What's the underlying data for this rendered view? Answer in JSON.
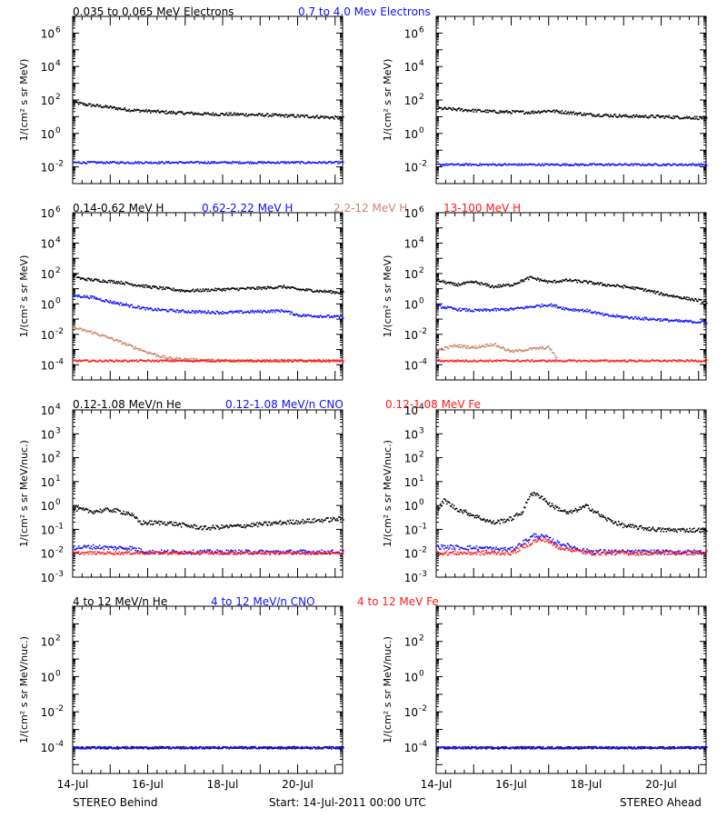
{
  "colors": {
    "black": "#000000",
    "blue": "#1010ff",
    "tan": "#c8866a",
    "red": "#ff1a1a"
  },
  "x_axis": {
    "tick_labels": [
      "14-Jul",
      "16-Jul",
      "18-Jul",
      "20-Jul"
    ],
    "day_positions": [
      0,
      2,
      4,
      6
    ],
    "range_days": [
      0,
      7.2
    ],
    "minor_ticks_per_day": 4
  },
  "footer": {
    "left": "STEREO Behind",
    "center": "Start: 14-Jul-2011 00:00 UTC",
    "right": "STEREO Ahead"
  },
  "chart_data": [
    {
      "type": "scatter",
      "row": "electrons",
      "legend": [
        {
          "text": "0.035 to 0.065 MeV Electrons",
          "color": "#000000"
        },
        {
          "text": "0.7 to 4.0 Mev Electrons",
          "color": "#1010ff"
        }
      ],
      "ylabel": "1/(cm² s sr MeV)",
      "yscale": "log",
      "ylim_exp": [
        -3,
        7
      ],
      "ytick_exponents": [
        -2,
        0,
        2,
        4,
        6
      ],
      "panels": [
        {
          "spacecraft": "STEREO Behind",
          "series": [
            {
              "color": "#000000",
              "x": [
                0,
                0.3,
                0.8,
                1.5,
                2.5,
                3.5,
                4.5,
                5.5,
                6.5,
                7.2
              ],
              "y": [
                80,
                60,
                45,
                28,
                20,
                16,
                15,
                13,
                11,
                9
              ]
            },
            {
              "color": "#1010ff",
              "x": [
                0,
                1,
                2,
                3,
                4,
                5,
                6,
                7.2
              ],
              "y": [
                0.02,
                0.02,
                0.02,
                0.02,
                0.02,
                0.02,
                0.02,
                0.02
              ]
            }
          ]
        },
        {
          "spacecraft": "STEREO Ahead",
          "series": [
            {
              "color": "#000000",
              "x": [
                0,
                0.5,
                1.5,
                2.5,
                3.0,
                4.0,
                5.0,
                6.0,
                7.2
              ],
              "y": [
                35,
                30,
                22,
                20,
                25,
                15,
                12,
                11,
                9
              ]
            },
            {
              "color": "#1010ff",
              "x": [
                0,
                1,
                2,
                3,
                4,
                5,
                6,
                7.2
              ],
              "y": [
                0.015,
                0.015,
                0.015,
                0.015,
                0.015,
                0.015,
                0.015,
                0.015
              ]
            }
          ]
        }
      ]
    },
    {
      "type": "scatter",
      "row": "protons",
      "legend": [
        {
          "text": "0.14-0.62 MeV H",
          "color": "#000000"
        },
        {
          "text": "0.62-2.22 MeV H",
          "color": "#1010ff"
        },
        {
          "text": "2.2-12 MeV H",
          "color": "#c8866a"
        },
        {
          "text": "13-100 MeV H",
          "color": "#ff1a1a"
        }
      ],
      "ylabel": "1/(cm² s sr MeV)",
      "yscale": "log",
      "ylim_exp": [
        -5,
        6
      ],
      "ytick_exponents": [
        -4,
        -2,
        0,
        2,
        4,
        6
      ],
      "panels": [
        {
          "spacecraft": "STEREO Behind",
          "series": [
            {
              "color": "#000000",
              "x": [
                0,
                0.2,
                0.6,
                1.2,
                2,
                3,
                4,
                5,
                5.6,
                6,
                6.5,
                7.2
              ],
              "y": [
                100,
                50,
                40,
                30,
                15,
                8,
                10,
                12,
                15,
                10,
                8,
                6
              ]
            },
            {
              "color": "#1010ff",
              "x": [
                0,
                0.5,
                1,
                2,
                3,
                4,
                5,
                5.6,
                6,
                6.5,
                7.2
              ],
              "y": [
                4,
                3,
                1.5,
                0.5,
                0.35,
                0.3,
                0.35,
                0.4,
                0.2,
                0.18,
                0.15
              ]
            },
            {
              "color": "#c8866a",
              "x": [
                0,
                0.5,
                1,
                1.5,
                2,
                2.5,
                3,
                4,
                5,
                6,
                7.2
              ],
              "y": [
                0.03,
                0.015,
                0.006,
                0.002,
                0.0007,
                0.0003,
                0.00025,
                0.0002,
                0.0002,
                0.0002,
                0.0002
              ]
            },
            {
              "color": "#ff1a1a",
              "x": [
                0,
                1,
                2,
                3,
                4,
                5,
                6,
                7.2
              ],
              "y": [
                0.0002,
                0.0002,
                0.0002,
                0.0002,
                0.0002,
                0.0002,
                0.0002,
                0.0002
              ]
            }
          ]
        },
        {
          "spacecraft": "STEREO Ahead",
          "series": [
            {
              "color": "#000000",
              "x": [
                0,
                0.5,
                1,
                1.5,
                2,
                2.5,
                3,
                3.5,
                4,
                4.5,
                5,
                5.5,
                6,
                6.5,
                7.2
              ],
              "y": [
                40,
                20,
                30,
                15,
                20,
                60,
                30,
                40,
                30,
                20,
                15,
                10,
                5,
                3,
                1.5
              ]
            },
            {
              "color": "#1010ff",
              "x": [
                0,
                0.5,
                1,
                2,
                3,
                3.5,
                4,
                4.5,
                5,
                5.5,
                6,
                6.5,
                7.2
              ],
              "y": [
                0.8,
                0.5,
                0.4,
                0.5,
                1,
                0.5,
                0.4,
                0.2,
                0.15,
                0.12,
                0.1,
                0.08,
                0.07
              ]
            },
            {
              "color": "#c8866a",
              "x": [
                0,
                0.5,
                1,
                1.5,
                2,
                2.5,
                3,
                3.2
              ],
              "y": [
                0.001,
                0.002,
                0.0015,
                0.0025,
                0.0008,
                0.0012,
                0.0015,
                0.0003
              ]
            },
            {
              "color": "#ff1a1a",
              "x": [
                0,
                1,
                2,
                3,
                4,
                5,
                6,
                7.2
              ],
              "y": [
                0.0002,
                0.0002,
                0.0002,
                0.0002,
                0.0002,
                0.0002,
                0.0002,
                0.0002
              ]
            }
          ]
        }
      ]
    },
    {
      "type": "scatter",
      "row": "heavy-low",
      "legend": [
        {
          "text": "0.12-1.08 MeV/n He",
          "color": "#000000"
        },
        {
          "text": "0.12-1.08 MeV/n CNO",
          "color": "#1010ff"
        },
        {
          "text": "0.12-1.08 MeV Fe",
          "color": "#ff1a1a"
        }
      ],
      "ylabel": "1/(cm² s sr MeV/nuc.)",
      "yscale": "log",
      "ylim_exp": [
        -3,
        4
      ],
      "ytick_exponents": [
        -3,
        -2,
        -1,
        0,
        1,
        2,
        3,
        4
      ],
      "panels": [
        {
          "spacecraft": "STEREO Behind",
          "series": [
            {
              "color": "#000000",
              "x": [
                0,
                0.5,
                1,
                1.5,
                1.8,
                2.5,
                3.5,
                4.5,
                5.5,
                6.5,
                7.2
              ],
              "y": [
                0.8,
                0.6,
                0.7,
                0.5,
                0.2,
                0.2,
                0.12,
                0.15,
                0.2,
                0.25,
                0.3
              ]
            },
            {
              "color": "#1010ff",
              "x": [
                0,
                0.5,
                1,
                1.5,
                2,
                3,
                4,
                5,
                6,
                7.2
              ],
              "y": [
                0.018,
                0.02,
                0.018,
                0.018,
                0.012,
                0.012,
                0.012,
                0.012,
                0.012,
                0.012
              ]
            },
            {
              "color": "#ff1a1a",
              "x": [
                0,
                1,
                2,
                3,
                4,
                5,
                6,
                7.2
              ],
              "y": [
                0.011,
                0.011,
                0.011,
                0.011,
                0.011,
                0.011,
                0.011,
                0.011
              ]
            }
          ]
        },
        {
          "spacecraft": "STEREO Ahead",
          "series": [
            {
              "color": "#000000",
              "x": [
                0,
                0.2,
                0.5,
                1,
                1.5,
                2,
                2.3,
                2.5,
                2.8,
                3,
                3.5,
                4,
                4.5,
                5,
                6,
                7.2
              ],
              "y": [
                0.6,
                1.8,
                0.8,
                0.4,
                0.2,
                0.3,
                0.6,
                3.5,
                2.5,
                1.2,
                0.5,
                1.0,
                0.3,
                0.15,
                0.1,
                0.1
              ]
            },
            {
              "color": "#1010ff",
              "x": [
                0,
                1,
                2,
                2.6,
                2.9,
                3.2,
                4,
                5,
                6,
                7.2
              ],
              "y": [
                0.02,
                0.018,
                0.015,
                0.06,
                0.05,
                0.03,
                0.013,
                0.012,
                0.012,
                0.012
              ]
            },
            {
              "color": "#ff1a1a",
              "x": [
                0,
                1,
                2,
                2.6,
                2.9,
                3.2,
                4,
                5,
                6,
                7.2
              ],
              "y": [
                0.011,
                0.011,
                0.011,
                0.035,
                0.04,
                0.02,
                0.011,
                0.011,
                0.011,
                0.011
              ]
            }
          ]
        }
      ]
    },
    {
      "type": "scatter",
      "row": "heavy-high",
      "legend": [
        {
          "text": "4 to 12 MeV/n He",
          "color": "#000000"
        },
        {
          "text": "4 to 12 MeV/n CNO",
          "color": "#1010ff"
        },
        {
          "text": "4 to 12 MeV Fe",
          "color": "#ff1a1a"
        }
      ],
      "ylabel": "1/(cm² s sr MeV/nuc.)",
      "yscale": "log",
      "ylim_exp": [
        -5.5,
        4
      ],
      "ytick_exponents": [
        -4,
        -2,
        0,
        2
      ],
      "panels": [
        {
          "spacecraft": "STEREO Behind",
          "series": [
            {
              "color": "#000000",
              "x": [
                0,
                1,
                2,
                3,
                4,
                5,
                6,
                7.2
              ],
              "y": [
                0.0001,
                0.0001,
                0.0001,
                0.0001,
                0.0001,
                0.0001,
                0.0001,
                0.0001
              ]
            },
            {
              "color": "#1010ff",
              "x": [
                0,
                1.5,
                3,
                4.5,
                6,
                7.2
              ],
              "y": [
                0.0001,
                0.0001,
                0.0001,
                0.0001,
                0.0001,
                0.0001
              ]
            }
          ]
        },
        {
          "spacecraft": "STEREO Ahead",
          "series": [
            {
              "color": "#000000",
              "x": [
                0,
                1,
                2,
                3,
                4,
                5,
                6,
                7.2
              ],
              "y": [
                0.0001,
                0.0001,
                0.0001,
                0.0001,
                0.0001,
                0.0001,
                0.0001,
                0.0001
              ]
            },
            {
              "color": "#1010ff",
              "x": [
                0,
                1.5,
                3,
                4.5,
                6,
                7.2
              ],
              "y": [
                0.0001,
                0.0001,
                0.0001,
                0.0001,
                0.0001,
                0.0001
              ]
            }
          ]
        }
      ]
    }
  ]
}
